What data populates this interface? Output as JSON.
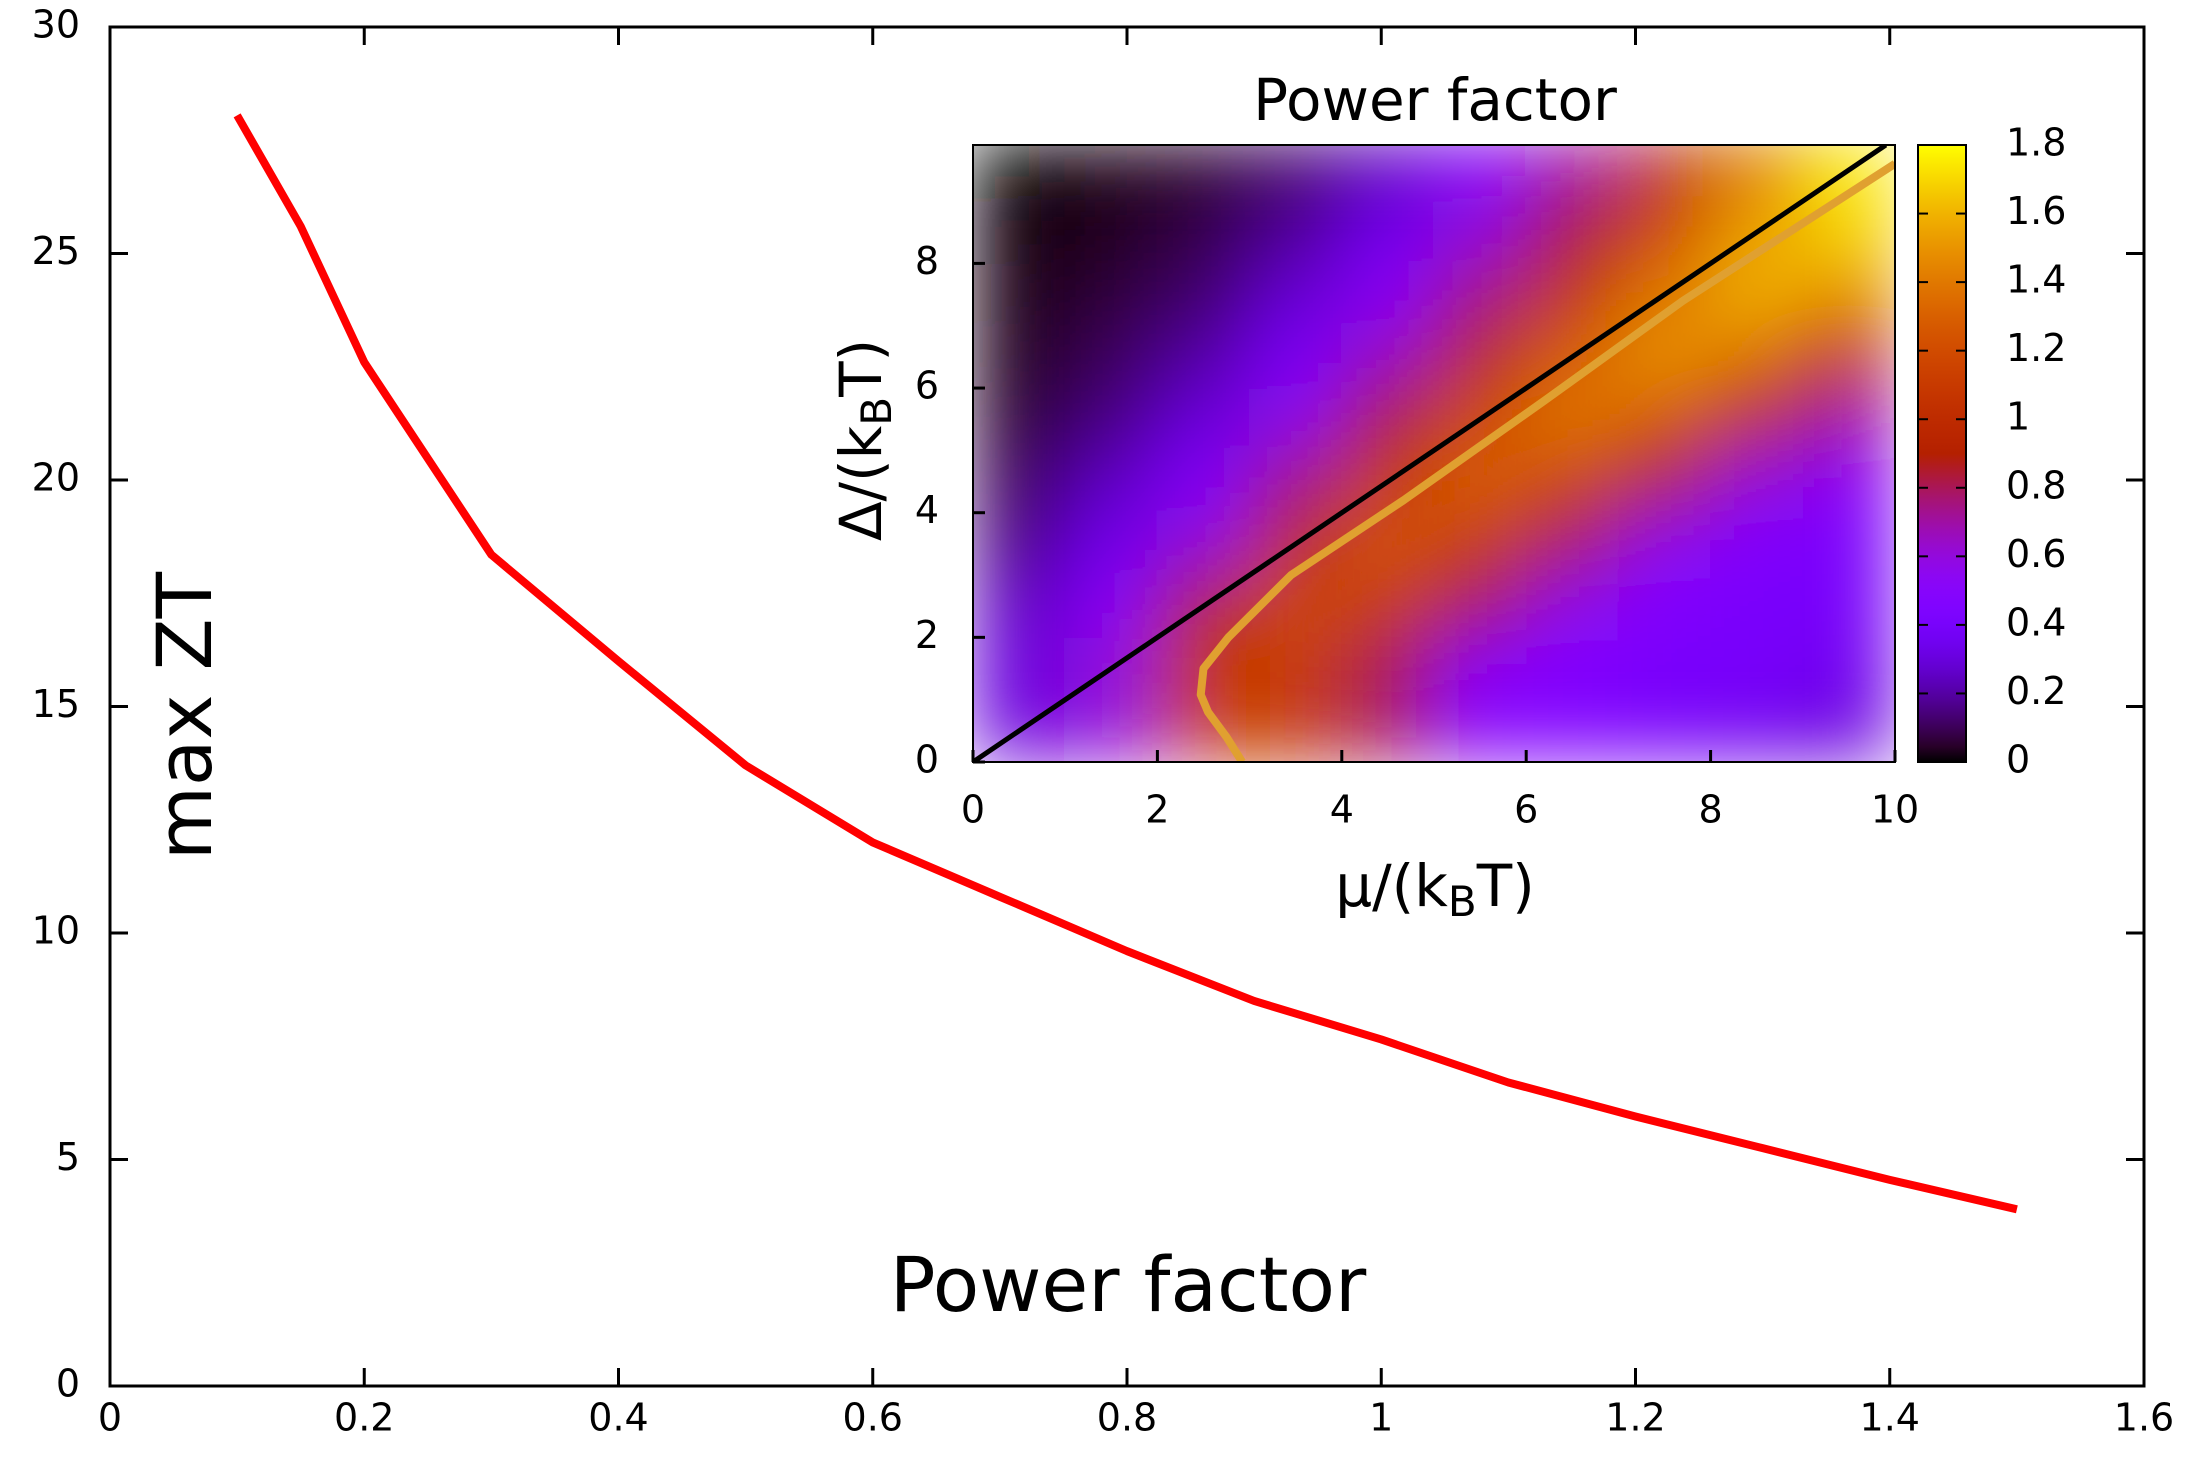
{
  "chart_data": [
    {
      "type": "line",
      "xlabel": "Power factor",
      "ylabel": "max ZT",
      "x": [
        0.1,
        0.15,
        0.2,
        0.3,
        0.4,
        0.5,
        0.6,
        0.7,
        0.8,
        0.9,
        1.0,
        1.1,
        1.2,
        1.3,
        1.4,
        1.5
      ],
      "series": [
        {
          "color": "#ff0000",
          "values": [
            28.05,
            25.6,
            22.6,
            18.35,
            16.0,
            13.7,
            12.0,
            10.8,
            9.6,
            8.5,
            7.65,
            6.7,
            5.95,
            5.25,
            4.55,
            3.9
          ]
        }
      ],
      "xlim": [
        0,
        1.6
      ],
      "ylim": [
        0,
        30
      ],
      "xticks": [
        0,
        0.2,
        0.4,
        0.6,
        0.8,
        1,
        1.2,
        1.4,
        1.6
      ],
      "yticks": [
        0,
        5,
        10,
        15,
        20,
        25,
        30
      ]
    },
    {
      "type": "heatmap",
      "title": "Power factor",
      "xlabel": [
        "μ/(k",
        "B",
        "T)"
      ],
      "ylabel": [
        "Δ/(k",
        "B",
        "T)"
      ],
      "xlim": [
        0,
        10
      ],
      "ylim": [
        0,
        9.9
      ],
      "xticks": [
        0,
        2,
        4,
        6,
        8,
        10
      ],
      "yticks": [
        0,
        2,
        4,
        6,
        8
      ],
      "x": [
        0.5,
        1.5,
        2.5,
        3.5,
        4.5,
        5.5,
        6.5,
        7.5,
        8.5,
        9.5
      ],
      "y": [
        0.5,
        1.5,
        2.5,
        3.5,
        4.5,
        5.5,
        6.5,
        7.5,
        8.5,
        9.5
      ],
      "z": [
        [
          0.3,
          0.6,
          1.1,
          1.1,
          0.8,
          0.5,
          0.45,
          0.4,
          0.35,
          0.3
        ],
        [
          0.3,
          0.6,
          1.1,
          1.1,
          0.8,
          0.5,
          0.45,
          0.4,
          0.4,
          0.35
        ],
        [
          0.25,
          0.5,
          0.9,
          1.2,
          1.1,
          0.8,
          0.55,
          0.45,
          0.4,
          0.4
        ],
        [
          0.15,
          0.35,
          0.6,
          1.0,
          1.25,
          1.1,
          0.8,
          0.55,
          0.45,
          0.4
        ],
        [
          0.1,
          0.25,
          0.45,
          0.75,
          1.1,
          1.3,
          1.15,
          0.85,
          0.6,
          0.5
        ],
        [
          0.05,
          0.15,
          0.3,
          0.55,
          0.85,
          1.2,
          1.4,
          1.25,
          0.95,
          0.7
        ],
        [
          0.03,
          0.1,
          0.2,
          0.4,
          0.65,
          0.95,
          1.3,
          1.5,
          1.35,
          1.05
        ],
        [
          0.02,
          0.06,
          0.12,
          0.28,
          0.5,
          0.75,
          1.05,
          1.4,
          1.6,
          1.45
        ],
        [
          0.01,
          0.03,
          0.08,
          0.18,
          0.35,
          0.6,
          0.85,
          1.2,
          1.55,
          1.7
        ],
        [
          0.0,
          0.02,
          0.05,
          0.12,
          0.25,
          0.45,
          0.7,
          1.0,
          1.4,
          1.75
        ]
      ],
      "colormap": "gnuplot",
      "clim": [
        0,
        1.8
      ],
      "cticks": [
        0,
        0.2,
        0.4,
        0.6,
        0.8,
        1,
        1.2,
        1.4,
        1.6,
        1.8
      ],
      "lines": [
        {
          "color": "#000000",
          "x": [
            0,
            9.9
          ],
          "values": [
            0,
            9.9
          ]
        },
        {
          "color": "#e0a030",
          "x": [
            2.92,
            2.75,
            2.55,
            2.47,
            2.5,
            2.77,
            3.45,
            4.67,
            6.2,
            7.7,
            10
          ],
          "values": [
            0,
            0.4,
            0.8,
            1.08,
            1.5,
            2.0,
            3.0,
            4.2,
            5.8,
            7.4,
            9.6
          ]
        }
      ]
    }
  ]
}
